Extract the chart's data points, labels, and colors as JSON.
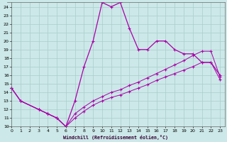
{
  "xlabel": "Windchill (Refroidissement éolien,°C)",
  "xlim": [
    -0.5,
    23.5
  ],
  "ylim": [
    10,
    24.5
  ],
  "xticks": [
    0,
    1,
    2,
    3,
    4,
    5,
    6,
    7,
    8,
    9,
    10,
    11,
    12,
    13,
    14,
    15,
    16,
    17,
    18,
    19,
    20,
    21,
    22,
    23
  ],
  "yticks": [
    10,
    11,
    12,
    13,
    14,
    15,
    16,
    17,
    18,
    19,
    20,
    21,
    22,
    23,
    24
  ],
  "bg_color": "#cce8e8",
  "grid_color": "#aacccc",
  "line_color": "#aa00aa",
  "line1_x": [
    0,
    1,
    3,
    4,
    5,
    6,
    7,
    8,
    9,
    10,
    11,
    12,
    13,
    14,
    15,
    16,
    17,
    18,
    19,
    20,
    21,
    22,
    23
  ],
  "line1_y": [
    14.5,
    13.0,
    12.0,
    11.5,
    11.0,
    10.0,
    13.0,
    17.0,
    20.0,
    24.5,
    24.0,
    24.5,
    21.5,
    19.0,
    19.0,
    20.0,
    20.0,
    19.0,
    18.5,
    18.5,
    17.5,
    17.5,
    16.0
  ],
  "line2_x": [
    0,
    1,
    3,
    4,
    5,
    6,
    7,
    8,
    9,
    10,
    11,
    12,
    13,
    14,
    15,
    16,
    17,
    18,
    19,
    20,
    21,
    22,
    23
  ],
  "line2_y": [
    14.5,
    13.0,
    12.0,
    11.5,
    11.0,
    10.0,
    11.5,
    12.3,
    13.0,
    13.5,
    14.0,
    14.3,
    14.8,
    15.2,
    15.7,
    16.2,
    16.7,
    17.2,
    17.7,
    18.3,
    18.8,
    18.8,
    15.8
  ],
  "line3_x": [
    0,
    1,
    3,
    4,
    5,
    6,
    7,
    8,
    9,
    10,
    11,
    12,
    13,
    14,
    15,
    16,
    17,
    18,
    19,
    20,
    21,
    22,
    23
  ],
  "line3_y": [
    14.5,
    13.0,
    12.0,
    11.5,
    11.0,
    10.0,
    11.0,
    11.8,
    12.5,
    13.0,
    13.4,
    13.7,
    14.1,
    14.5,
    14.9,
    15.4,
    15.8,
    16.2,
    16.6,
    17.0,
    17.5,
    17.5,
    15.5
  ]
}
